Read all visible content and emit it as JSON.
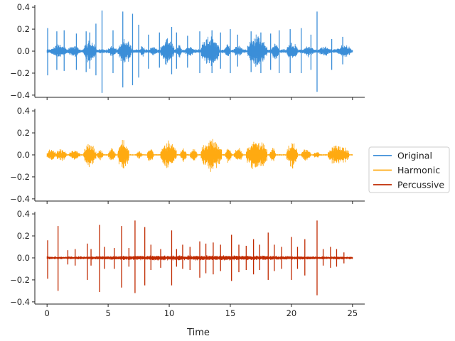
{
  "chart_data": {
    "type": "line",
    "xlabel": "Time",
    "xlim": [
      -1,
      26
    ],
    "ylim": [
      -0.42,
      0.42
    ],
    "xticks": [
      0,
      5,
      10,
      15,
      20,
      25
    ],
    "yticks": [
      0.4,
      0.2,
      0.0,
      -0.2,
      -0.4
    ],
    "ytick_labels": [
      "0.4",
      "0.2",
      "0.0",
      "−0.2",
      "−0.4"
    ],
    "duration": 25,
    "legend_position": "right",
    "series": [
      {
        "name": "Original",
        "color": "#3b8ed8",
        "spikes": [
          [
            0.05,
            0.21,
            -0.22
          ],
          [
            0.8,
            0.18,
            -0.17
          ],
          [
            1.4,
            0.19,
            -0.18
          ],
          [
            2.4,
            0.16,
            -0.17
          ],
          [
            3.2,
            0.18,
            -0.19
          ],
          [
            3.5,
            0.17,
            -0.16
          ],
          [
            4.0,
            0.25,
            -0.22
          ],
          [
            4.5,
            0.37,
            -0.38
          ],
          [
            5.4,
            0.19,
            -0.2
          ],
          [
            6.2,
            0.36,
            -0.33
          ],
          [
            7.0,
            0.34,
            -0.31
          ],
          [
            7.5,
            0.24,
            -0.24
          ],
          [
            8.3,
            0.15,
            -0.16
          ],
          [
            9.2,
            0.17,
            -0.15
          ],
          [
            10.2,
            0.22,
            -0.21
          ],
          [
            10.6,
            0.17,
            -0.16
          ],
          [
            11.5,
            0.14,
            -0.15
          ],
          [
            12.5,
            0.18,
            -0.2
          ],
          [
            13.5,
            0.19,
            -0.2
          ],
          [
            14.2,
            0.17,
            -0.16
          ],
          [
            15.0,
            0.2,
            -0.2
          ],
          [
            15.6,
            0.15,
            -0.14
          ],
          [
            16.7,
            0.18,
            -0.19
          ],
          [
            17.5,
            0.17,
            -0.2
          ],
          [
            18.3,
            0.16,
            -0.17
          ],
          [
            19.0,
            0.19,
            -0.2
          ],
          [
            19.9,
            0.2,
            -0.2
          ],
          [
            20.8,
            0.21,
            -0.2
          ],
          [
            21.6,
            0.15,
            -0.17
          ],
          [
            22.1,
            0.36,
            -0.37
          ],
          [
            23.3,
            0.11,
            -0.17
          ],
          [
            24.2,
            0.13,
            -0.12
          ]
        ],
        "bursts": [
          [
            0.3,
            1.6,
            0.07
          ],
          [
            1.7,
            2.7,
            0.06
          ],
          [
            3.0,
            4.0,
            0.12
          ],
          [
            5.0,
            5.7,
            0.06
          ],
          [
            5.8,
            6.9,
            0.13
          ],
          [
            7.6,
            8.0,
            0.06
          ],
          [
            8.4,
            9.0,
            0.05
          ],
          [
            9.3,
            10.4,
            0.14
          ],
          [
            10.6,
            11.0,
            0.07
          ],
          [
            11.3,
            12.0,
            0.06
          ],
          [
            12.6,
            14.1,
            0.16
          ],
          [
            14.5,
            15.0,
            0.07
          ],
          [
            15.3,
            16.0,
            0.06
          ],
          [
            16.4,
            18.0,
            0.16
          ],
          [
            18.4,
            19.0,
            0.09
          ],
          [
            19.6,
            20.5,
            0.09
          ],
          [
            21.0,
            21.8,
            0.06
          ],
          [
            22.2,
            23.3,
            0.05
          ],
          [
            23.7,
            24.9,
            0.07
          ]
        ],
        "baseline": 0.02
      },
      {
        "name": "Harmonic",
        "color": "#ffaa11",
        "spikes": [],
        "bursts": [
          [
            0.0,
            0.7,
            0.06
          ],
          [
            0.7,
            1.6,
            0.06
          ],
          [
            1.8,
            2.7,
            0.05
          ],
          [
            3.0,
            4.0,
            0.13
          ],
          [
            4.1,
            4.6,
            0.05
          ],
          [
            5.0,
            5.6,
            0.07
          ],
          [
            5.8,
            6.7,
            0.16
          ],
          [
            7.3,
            7.8,
            0.04
          ],
          [
            8.2,
            8.7,
            0.08
          ],
          [
            9.3,
            10.6,
            0.14
          ],
          [
            10.9,
            11.4,
            0.08
          ],
          [
            11.7,
            12.3,
            0.07
          ],
          [
            12.6,
            14.3,
            0.16
          ],
          [
            14.6,
            15.1,
            0.08
          ],
          [
            15.3,
            16.0,
            0.07
          ],
          [
            16.3,
            18.0,
            0.16
          ],
          [
            18.2,
            18.7,
            0.07
          ],
          [
            19.6,
            20.5,
            0.13
          ],
          [
            20.8,
            21.6,
            0.06
          ],
          [
            21.8,
            22.3,
            0.04
          ],
          [
            23.0,
            24.7,
            0.11
          ]
        ],
        "baseline": 0.008
      },
      {
        "name": "Percussive",
        "color": "#c02a00",
        "spikes": [
          [
            0.05,
            0.16,
            -0.19
          ],
          [
            0.9,
            0.29,
            -0.3
          ],
          [
            1.7,
            0.07,
            -0.06
          ],
          [
            2.3,
            0.08,
            -0.07
          ],
          [
            3.3,
            0.13,
            -0.2
          ],
          [
            3.6,
            0.08,
            -0.07
          ],
          [
            4.3,
            0.3,
            -0.31
          ],
          [
            4.7,
            0.1,
            -0.1
          ],
          [
            5.5,
            0.09,
            -0.1
          ],
          [
            6.1,
            0.29,
            -0.27
          ],
          [
            6.7,
            0.09,
            -0.08
          ],
          [
            7.2,
            0.34,
            -0.32
          ],
          [
            8.0,
            0.28,
            -0.25
          ],
          [
            8.5,
            0.12,
            -0.11
          ],
          [
            9.3,
            0.08,
            -0.09
          ],
          [
            10.2,
            0.25,
            -0.25
          ],
          [
            10.6,
            0.08,
            -0.08
          ],
          [
            11.1,
            0.12,
            -0.1
          ],
          [
            11.7,
            0.1,
            -0.11
          ],
          [
            12.5,
            0.15,
            -0.18
          ],
          [
            13.0,
            0.13,
            -0.14
          ],
          [
            13.6,
            0.14,
            -0.15
          ],
          [
            14.2,
            0.12,
            -0.12
          ],
          [
            15.1,
            0.21,
            -0.21
          ],
          [
            15.7,
            0.12,
            -0.13
          ],
          [
            16.3,
            0.11,
            -0.11
          ],
          [
            16.9,
            0.17,
            -0.15
          ],
          [
            17.4,
            0.12,
            -0.11
          ],
          [
            18.1,
            0.23,
            -0.2
          ],
          [
            18.6,
            0.12,
            -0.12
          ],
          [
            19.2,
            0.1,
            -0.1
          ],
          [
            20.0,
            0.19,
            -0.2
          ],
          [
            20.5,
            0.1,
            -0.1
          ],
          [
            21.1,
            0.17,
            -0.16
          ],
          [
            22.1,
            0.34,
            -0.34
          ],
          [
            22.6,
            0.08,
            -0.07
          ],
          [
            23.2,
            0.1,
            -0.09
          ],
          [
            23.7,
            0.08,
            -0.08
          ],
          [
            24.3,
            0.05,
            -0.05
          ]
        ],
        "bursts": [
          [
            0.0,
            25.0,
            0.025
          ]
        ],
        "baseline": 0.015
      }
    ]
  }
}
